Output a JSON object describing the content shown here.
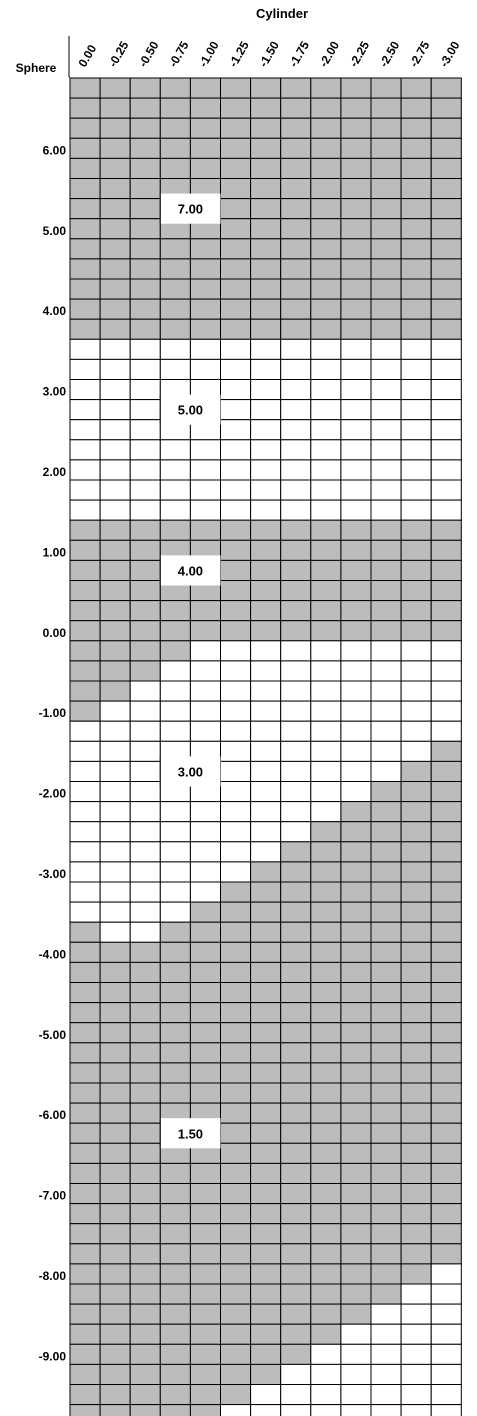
{
  "title": "Cylinder",
  "row_header": "Sphere",
  "cylinder_labels": [
    "0.00",
    "-0.25",
    "-0.50",
    "-0.75",
    "-1.00",
    "-1.25",
    "-1.50",
    "-1.75",
    "-2.00",
    "-2.25",
    "-2.50",
    "-2.75",
    "-3.00"
  ],
  "sphere_labels": [
    "6.00",
    "5.00",
    "4.00",
    "3.00",
    "2.00",
    "1.00",
    "0.00",
    "-1.00",
    "-2.00",
    "-3.00",
    "-4.00",
    "-5.00",
    "-6.00",
    "-7.00",
    "-8.00",
    "-9.00",
    "-10.00"
  ],
  "colors": {
    "shaded": "#bcbcbc",
    "unshaded": "#ffffff",
    "grid": "#000000"
  },
  "zones": [
    {
      "value": "7.00",
      "sphere_top": 6.75,
      "sphere_bottom": 3.75
    },
    {
      "value": "5.00",
      "sphere_top": 3.5,
      "sphere_bottom": 1.75
    },
    {
      "value": "4.00",
      "sphere_top": 1.5,
      "sphere_bottom": 0.0,
      "steps": [
        0,
        0,
        0,
        0,
        0.25,
        0.25,
        0.25,
        0.25,
        0.25,
        0.25,
        0.25,
        0.25,
        0.25
      ]
    },
    {
      "value": "3.00",
      "steps": [
        -1.0,
        -0.75,
        -0.5,
        -0.25,
        0.0,
        0.25,
        0.25,
        0.25,
        0.25,
        0.25,
        0.25,
        0.25,
        0.25
      ],
      "bottom_steps": [
        -3.5,
        -3.75,
        -3.75,
        -3.5,
        -3.25,
        -3.0,
        -2.75,
        -2.5,
        -2.25,
        -2.0,
        -1.75,
        -1.5,
        -1.25
      ]
    },
    {
      "value": "1.50",
      "bottom_steps": [
        -10.0,
        -10.0,
        -10.0,
        -10.0,
        -9.75,
        -9.5,
        -9.25,
        -9.0,
        -8.75,
        -8.5,
        -8.25,
        -8.0,
        -7.75
      ]
    }
  ]
}
